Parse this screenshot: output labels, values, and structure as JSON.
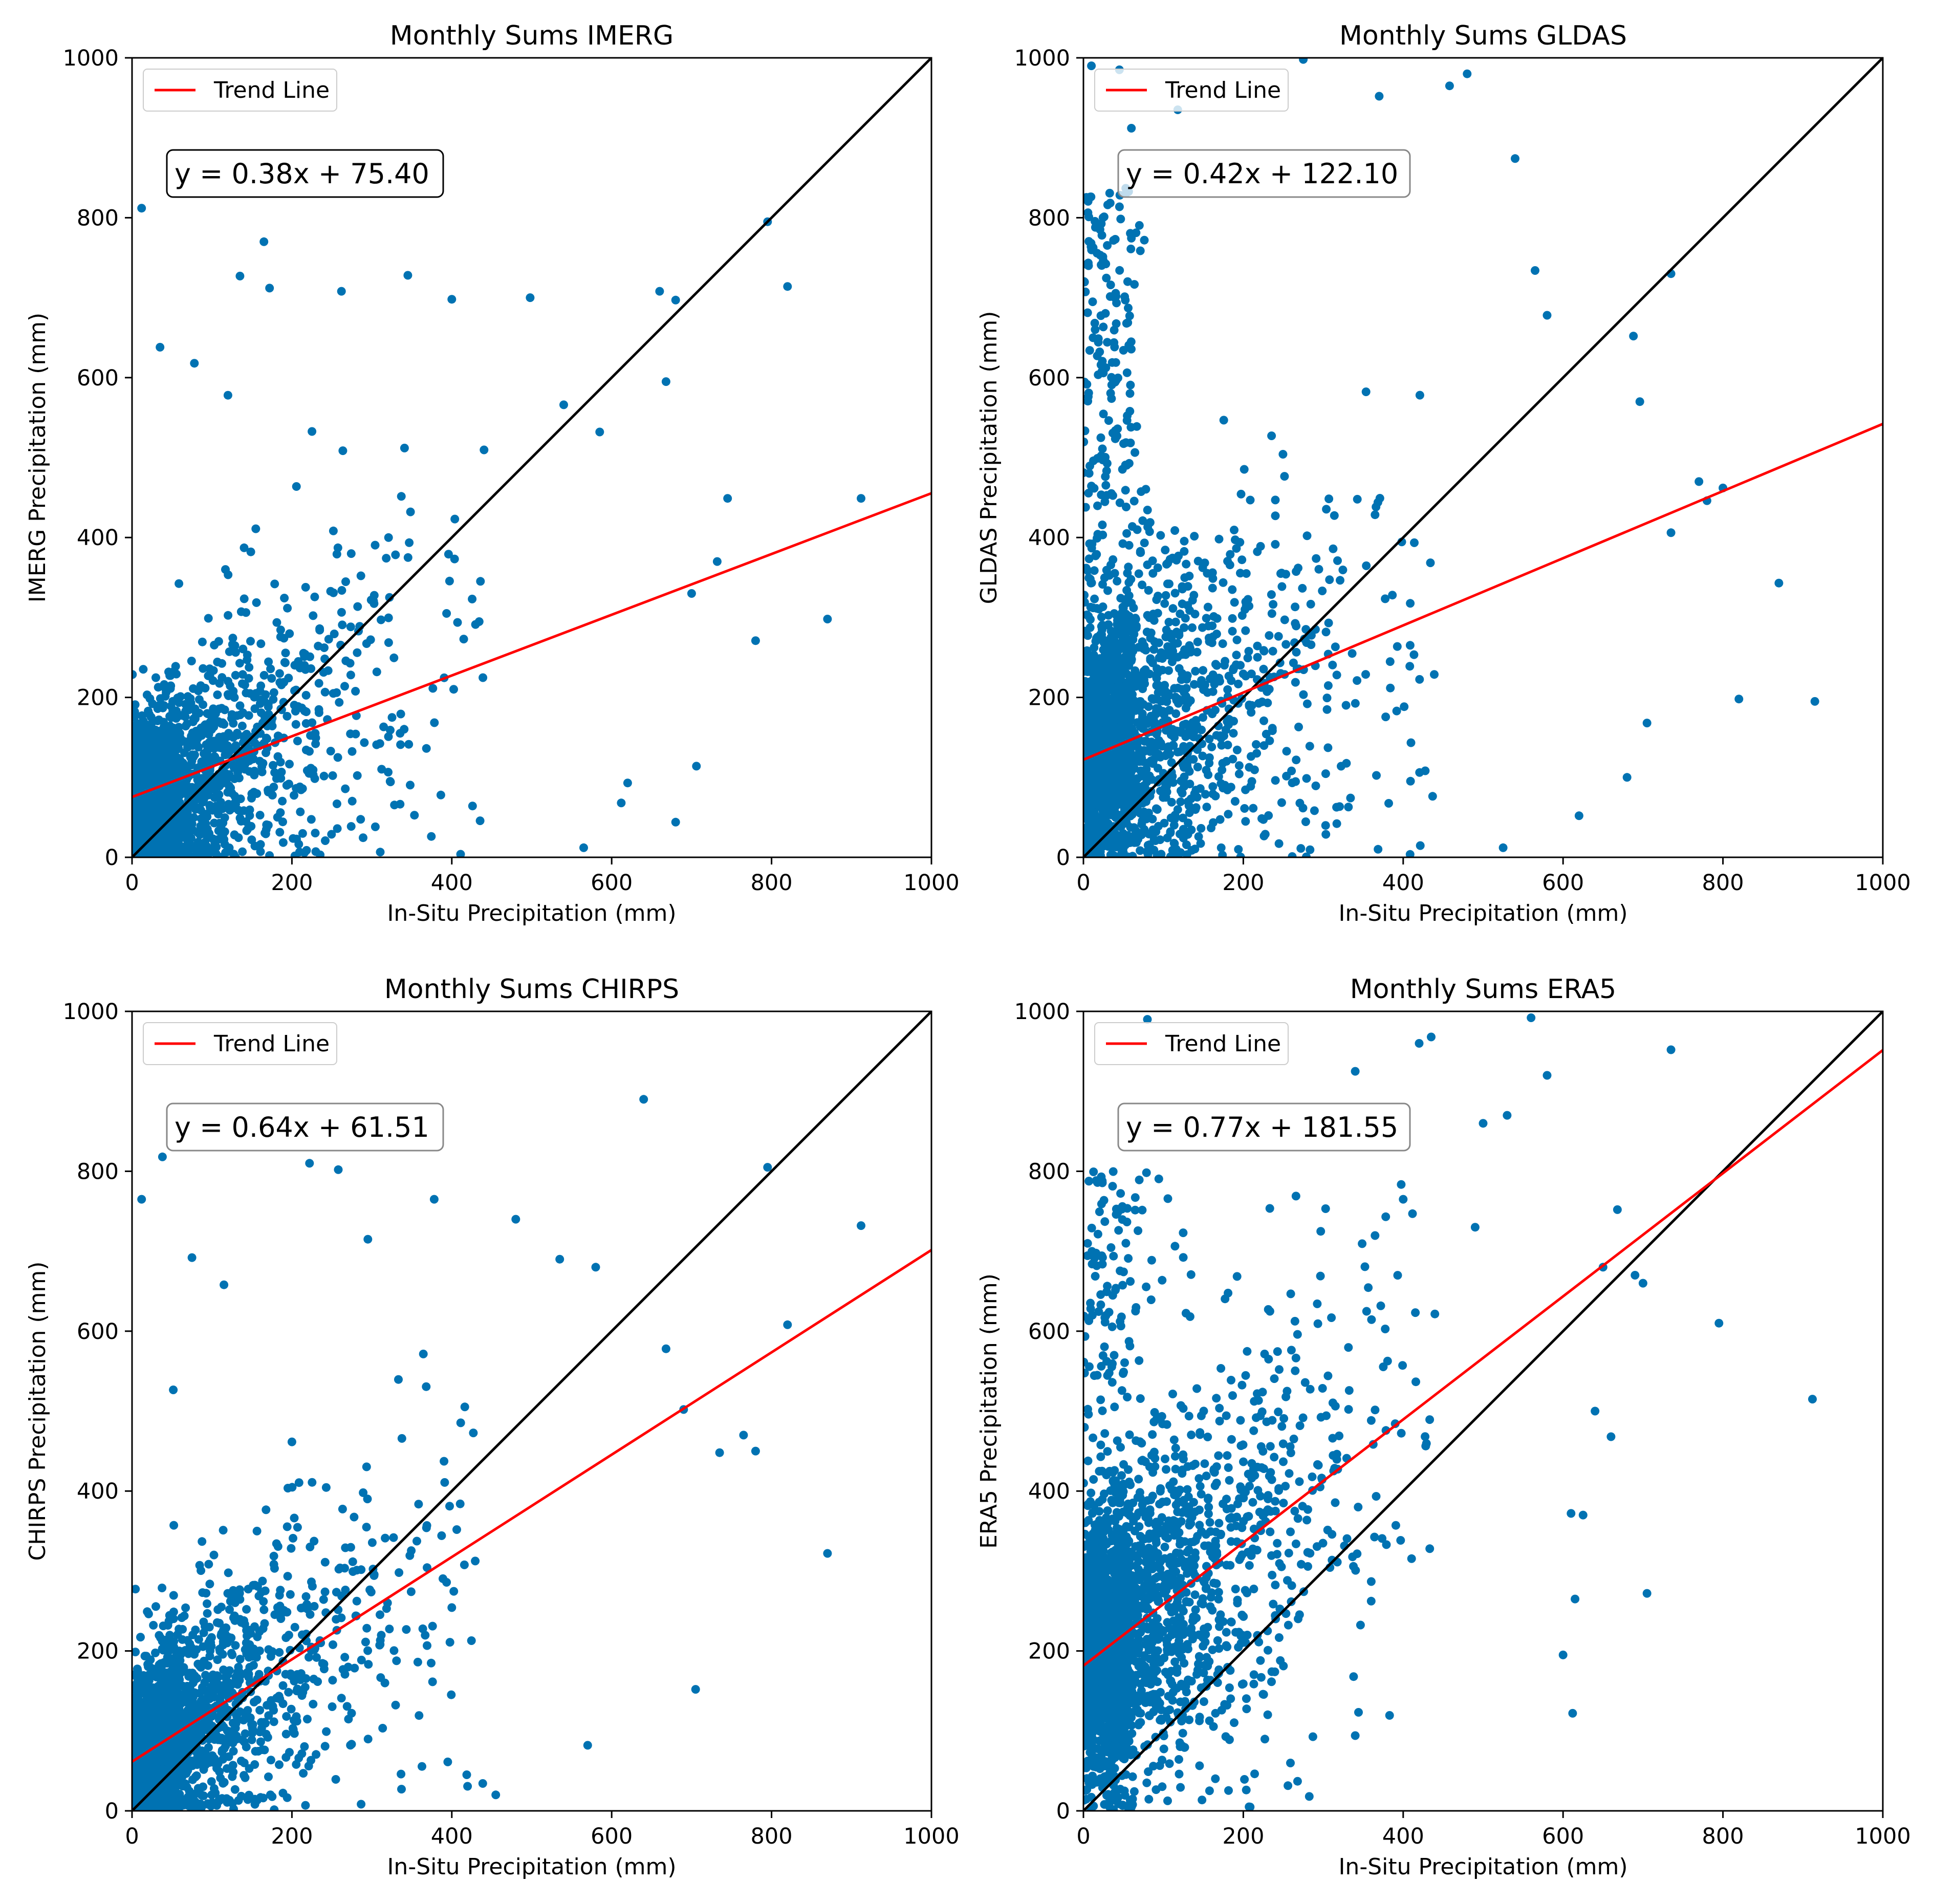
{
  "figure": {
    "background": "#ffffff"
  },
  "styles": {
    "point_color": "#1f77b4",
    "point_fill": "#0072b2",
    "trend_color": "#ff0000",
    "identity_color": "#000000"
  },
  "chart_data": [
    {
      "type": "scatter",
      "title": "Monthly Sums IMERG",
      "xlabel": "In-Situ Precipitation (mm)",
      "ylabel": "IMERG Precipitation (mm)",
      "xlim": [
        0,
        1000
      ],
      "ylim": [
        0,
        1000
      ],
      "xticks": [
        "0",
        "200",
        "400",
        "600",
        "800",
        "1000"
      ],
      "yticks": [
        "0",
        "200",
        "400",
        "600",
        "800",
        "1000"
      ],
      "legend": {
        "label": "Trend Line",
        "position": "upper-left"
      },
      "equation": "y = 0.38x + 75.40",
      "equation_border": "#000000",
      "trend": {
        "slope": 0.38,
        "intercept": 75.4
      },
      "identity_line": true,
      "grid": false,
      "point_stats": {
        "seed": 11,
        "n": 1900,
        "mode": "imerg"
      },
      "outliers": [
        [
          12,
          812
        ],
        [
          35,
          638
        ],
        [
          78,
          618
        ],
        [
          120,
          578
        ],
        [
          135,
          727
        ],
        [
          165,
          770
        ],
        [
          172,
          712
        ],
        [
          262,
          708
        ],
        [
          345,
          728
        ],
        [
          400,
          698
        ],
        [
          498,
          700
        ],
        [
          540,
          566
        ],
        [
          585,
          532
        ],
        [
          660,
          708
        ],
        [
          668,
          595
        ],
        [
          680,
          697
        ],
        [
          745,
          449
        ],
        [
          780,
          271
        ],
        [
          795,
          795
        ],
        [
          820,
          714
        ],
        [
          870,
          298
        ],
        [
          912,
          449
        ],
        [
          706,
          114
        ],
        [
          680,
          44
        ],
        [
          565,
          12
        ],
        [
          612,
          68
        ],
        [
          620,
          93
        ],
        [
          732,
          370
        ],
        [
          700,
          330
        ]
      ]
    },
    {
      "type": "scatter",
      "title": "Monthly Sums GLDAS",
      "xlabel": "In-Situ Precipitation (mm)",
      "ylabel": "GLDAS Precipitation (mm)",
      "xlim": [
        0,
        1000
      ],
      "ylim": [
        0,
        1000
      ],
      "xticks": [
        "0",
        "200",
        "400",
        "600",
        "800",
        "1000"
      ],
      "yticks": [
        "0",
        "200",
        "400",
        "600",
        "800",
        "1000"
      ],
      "legend": {
        "label": "Trend Line",
        "position": "upper-left"
      },
      "equation": "y = 0.42x + 122.10",
      "equation_border": "#888888",
      "trend": {
        "slope": 0.42,
        "intercept": 122.1
      },
      "identity_line": true,
      "grid": false,
      "point_stats": {
        "seed": 23,
        "n": 2200,
        "mode": "gldas"
      },
      "outliers": [
        [
          10,
          990
        ],
        [
          45,
          985
        ],
        [
          60,
          912
        ],
        [
          118,
          935
        ],
        [
          275,
          998
        ],
        [
          370,
          952
        ],
        [
          458,
          965
        ],
        [
          480,
          980
        ],
        [
          540,
          874
        ],
        [
          565,
          734
        ],
        [
          580,
          678
        ],
        [
          735,
          730
        ],
        [
          688,
          652
        ],
        [
          696,
          570
        ],
        [
          770,
          470
        ],
        [
          780,
          446
        ],
        [
          800,
          462
        ],
        [
          820,
          198
        ],
        [
          870,
          343
        ],
        [
          915,
          195
        ],
        [
          620,
          52
        ],
        [
          525,
          12
        ],
        [
          680,
          100
        ],
        [
          705,
          168
        ],
        [
          735,
          406
        ]
      ]
    },
    {
      "type": "scatter",
      "title": "Monthly Sums CHIRPS",
      "xlabel": "In-Situ Precipitation (mm)",
      "ylabel": "CHIRPS Precipitation (mm)",
      "xlim": [
        0,
        1000
      ],
      "ylim": [
        0,
        1000
      ],
      "xticks": [
        "0",
        "200",
        "400",
        "600",
        "800",
        "1000"
      ],
      "yticks": [
        "0",
        "200",
        "400",
        "600",
        "800",
        "1000"
      ],
      "legend": {
        "label": "Trend Line",
        "position": "upper-left"
      },
      "equation": "y = 0.64x + 61.51",
      "equation_border": "#888888",
      "trend": {
        "slope": 0.64,
        "intercept": 61.51
      },
      "identity_line": true,
      "grid": false,
      "point_stats": {
        "seed": 37,
        "n": 2100,
        "mode": "chirps"
      },
      "outliers": [
        [
          12,
          765
        ],
        [
          38,
          818
        ],
        [
          75,
          692
        ],
        [
          115,
          658
        ],
        [
          222,
          810
        ],
        [
          258,
          802
        ],
        [
          295,
          715
        ],
        [
          378,
          765
        ],
        [
          480,
          740
        ],
        [
          535,
          690
        ],
        [
          580,
          680
        ],
        [
          640,
          890
        ],
        [
          795,
          805
        ],
        [
          820,
          608
        ],
        [
          912,
          732
        ],
        [
          870,
          322
        ],
        [
          765,
          470
        ],
        [
          780,
          450
        ],
        [
          705,
          152
        ],
        [
          570,
          82
        ],
        [
          455,
          20
        ],
        [
          735,
          448
        ],
        [
          668,
          578
        ],
        [
          690,
          502
        ]
      ]
    },
    {
      "type": "scatter",
      "title": "Monthly Sums ERA5",
      "xlabel": "In-Situ Precipitation (mm)",
      "ylabel": "ERA5 Precipitation (mm)",
      "xlim": [
        0,
        1000
      ],
      "ylim": [
        0,
        1000
      ],
      "xticks": [
        "0",
        "200",
        "400",
        "600",
        "800",
        "1000"
      ],
      "yticks": [
        "0",
        "200",
        "400",
        "600",
        "800",
        "1000"
      ],
      "legend": {
        "label": "Trend Line",
        "position": "upper-left"
      },
      "equation": "y = 0.77x + 181.55",
      "equation_border": "#888888",
      "trend": {
        "slope": 0.77,
        "intercept": 181.55
      },
      "identity_line": true,
      "grid": false,
      "point_stats": {
        "seed": 53,
        "n": 2600,
        "mode": "era5"
      },
      "outliers": [
        [
          80,
          990
        ],
        [
          420,
          960
        ],
        [
          435,
          968
        ],
        [
          560,
          992
        ],
        [
          580,
          920
        ],
        [
          735,
          952
        ],
        [
          668,
          752
        ],
        [
          690,
          670
        ],
        [
          650,
          680
        ],
        [
          700,
          660
        ],
        [
          795,
          610
        ],
        [
          912,
          515
        ],
        [
          705,
          272
        ],
        [
          612,
          122
        ],
        [
          600,
          195
        ],
        [
          615,
          265
        ],
        [
          640,
          500
        ],
        [
          660,
          468
        ],
        [
          610,
          372
        ],
        [
          625,
          370
        ],
        [
          530,
          870
        ],
        [
          500,
          860
        ],
        [
          490,
          730
        ],
        [
          400,
          765
        ],
        [
          340,
          925
        ]
      ]
    }
  ]
}
